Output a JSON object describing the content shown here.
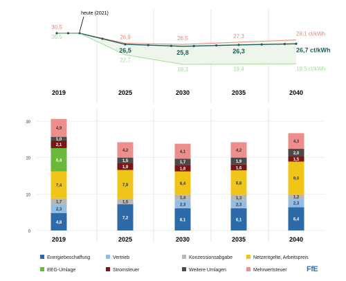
{
  "chart_data": [
    {
      "type": "line",
      "annotation": "heute (2021)",
      "x": [
        2019,
        2021,
        2025,
        2030,
        2035,
        2040
      ],
      "series": [
        {
          "name": "",
          "color": "#e8877b",
          "values": [
            30.5,
            30.5,
            26.9,
            26.5,
            27.3,
            28.1
          ]
        },
        {
          "name": "",
          "color": "#1a5c57",
          "values": [
            30.5,
            30.5,
            26.5,
            25.8,
            26.3,
            26.7
          ]
        },
        {
          "name": "",
          "color": "#a8d99a",
          "values": [
            30.5,
            30.5,
            22.7,
            19.3,
            19.4,
            19.5
          ]
        }
      ],
      "labels": {
        "top": [
          "30,5",
          "26,9",
          "26,5",
          "27,3",
          "28,1 ct/kWh"
        ],
        "middle": [
          "26,5",
          "25,8",
          "26,3",
          "26,7 ct/kWh"
        ],
        "bottom": [
          "30,5",
          "22,7",
          "19,3",
          "19,4",
          "19,5 ct/kWh"
        ]
      },
      "year_headers": [
        "2019",
        "2025",
        "2030",
        "2035",
        "2040"
      ]
    },
    {
      "type": "bar",
      "stacked": true,
      "categories": [
        "2019",
        "2025",
        "2030",
        "2035",
        "2040"
      ],
      "ylim": [
        0,
        30
      ],
      "yticks": [
        "0",
        "10",
        "20",
        "30"
      ],
      "grid": true,
      "legend_position": "bottom",
      "series": [
        {
          "name": "Energiebeschaffung",
          "color": "#2e6aa8",
          "values": [
            4.8,
            7.2,
            6.1,
            6.1,
            6.4
          ],
          "labels": [
            "4,8",
            "7,2",
            "6,1",
            "6,1",
            "6,4"
          ]
        },
        {
          "name": "Vertrieb",
          "color": "#93bde3",
          "values": [
            2.3,
            0,
            2.3,
            2.3,
            2.3
          ],
          "labels": [
            "2,3",
            "",
            "2,3",
            "2,3",
            "2,3"
          ]
        },
        {
          "name": "Konzessionsabgabe",
          "color": "#b7b7b7",
          "values": [
            1.7,
            1.5,
            1.4,
            1.3,
            1.2
          ],
          "labels": [
            "1,7",
            "1,5",
            "1,4",
            "1,3",
            "1,2"
          ]
        },
        {
          "name": "Netzentgelte, Arbeitspreis",
          "color": "#f0c519",
          "values": [
            7.4,
            7.9,
            6.4,
            6.8,
            9.0
          ],
          "labels": [
            "7,4",
            "7,9",
            "6,4",
            "6,8",
            "9,0"
          ]
        },
        {
          "name": "EEG-Umlage",
          "color": "#6bb83d",
          "values": [
            6.4,
            0,
            0,
            0,
            0
          ],
          "labels": [
            "6,4",
            "",
            "",
            "",
            ""
          ]
        },
        {
          "name": "Stromsteuer",
          "color": "#7a1618",
          "values": [
            2.1,
            1.9,
            1.8,
            1.6,
            1.5
          ],
          "labels": [
            "2,1",
            "1,9",
            "1,8",
            "1,6",
            "1,5"
          ]
        },
        {
          "name": "Weitere Umlagen",
          "color": "#4a4a4a",
          "values": [
            1.0,
            1.5,
            1.7,
            1.9,
            2.0
          ],
          "labels": [
            "1,0",
            "1,5",
            "1,7",
            "1,9",
            "2,0"
          ]
        },
        {
          "name": "Mehrwertsteuer",
          "color": "#ec8f8c",
          "values": [
            4.9,
            4.2,
            4.1,
            4.2,
            4.3
          ],
          "labels": [
            "4,9",
            "4,2",
            "4,1",
            "4,2",
            "4,3"
          ]
        }
      ]
    }
  ],
  "logo": "FfE"
}
